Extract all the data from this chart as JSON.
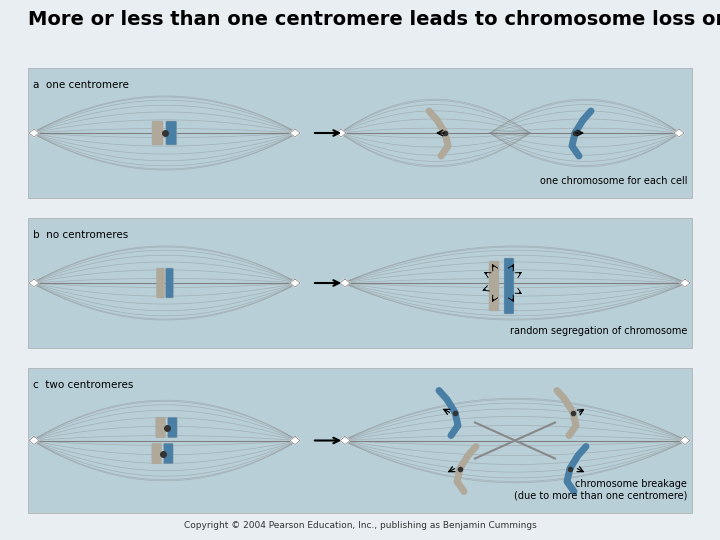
{
  "title": "More or less than one centromere leads to chromosome loss or breakage",
  "title_fontsize": 14,
  "bg_color": "#e8eef2",
  "panel_bg": "#b8cfd8",
  "panel_border": "#aaaaaa",
  "label_a": "a  one centromere",
  "label_b": "b  no centromeres",
  "label_c": "c  two centromeres",
  "caption_a": "one chromosome for each cell",
  "caption_b": "random segregation of chromosome",
  "caption_c": "chromosome breakage\n(due to more than one centromere)",
  "copyright": "Copyright © 2004 Pearson Education, Inc., publishing as Benjamin Cummings",
  "gray_chr": "#b0a898",
  "blue_chr": "#4a7fa5",
  "centromere_color": "#333333",
  "spindle_color": "#888888"
}
